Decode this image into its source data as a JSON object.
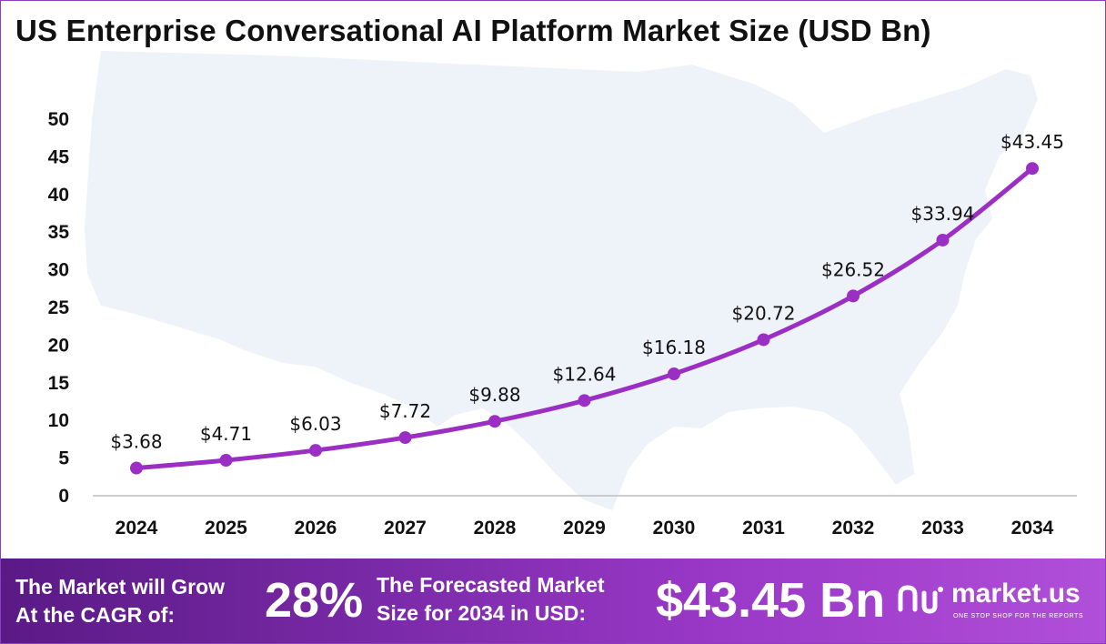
{
  "chart_data": {
    "type": "line",
    "title": "US Enterprise Conversational  AI Platform Market Size (USD Bn)",
    "xlabel": "",
    "ylabel": "",
    "categories": [
      "2024",
      "2025",
      "2026",
      "2027",
      "2028",
      "2029",
      "2030",
      "2031",
      "2032",
      "2033",
      "2034"
    ],
    "series": [
      {
        "name": "Market Size (USD Bn)",
        "values": [
          3.68,
          4.71,
          6.03,
          7.72,
          9.88,
          12.64,
          16.18,
          20.72,
          26.52,
          33.94,
          43.45
        ],
        "labels": [
          "$3.68",
          "$4.71",
          "$6.03",
          "$7.72",
          "$9.88",
          "$12.64",
          "$16.18",
          "$20.72",
          "$26.52",
          "$33.94",
          "$43.45"
        ]
      }
    ],
    "yticks": [
      "0",
      "5",
      "10",
      "15",
      "20",
      "25",
      "30",
      "35",
      "40",
      "45",
      "50"
    ],
    "ylim": [
      0,
      50
    ],
    "grid": false,
    "legend": "none"
  },
  "colors": {
    "line": "#9b2fc4",
    "marker": "#9b2fc4",
    "map": "#eef2f9",
    "axis": "#bfbfbf"
  },
  "banner": {
    "cagr_label_line1": "The Market will Grow",
    "cagr_label_line2": "At the CAGR of:",
    "cagr_value": "28%",
    "forecast_label_line1": "The Forecasted Market",
    "forecast_label_line2": "Size for 2034 in USD:",
    "forecast_value": "$43.45 Bn",
    "brand_name": "market.us",
    "brand_tagline": "ONE STOP SHOP FOR THE REPORTS",
    "brand_icon": "market-us-logo-icon"
  }
}
